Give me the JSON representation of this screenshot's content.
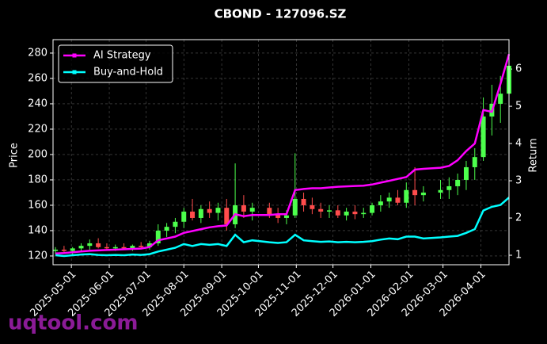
{
  "chart_data": {
    "type": "candlestick",
    "title": "CBOND - 127096.SZ",
    "ylabel": "Price",
    "y2label": "Return",
    "watermark": "uqtool.com",
    "legend": "upper left",
    "grid": true,
    "up_color": "#4cff4c",
    "down_color": "#ff4c4c",
    "x": [
      "2025-04-18",
      "2025-04-25",
      "2025-05-02",
      "2025-05-09",
      "2025-05-16",
      "2025-05-23",
      "2025-05-30",
      "2025-06-06",
      "2025-06-13",
      "2025-06-20",
      "2025-06-27",
      "2025-07-04",
      "2025-07-11",
      "2025-07-18",
      "2025-07-25",
      "2025-08-01",
      "2025-08-08",
      "2025-08-15",
      "2025-08-22",
      "2025-08-29",
      "2025-09-05",
      "2025-09-12",
      "2025-09-19",
      "2025-09-26",
      "2025-10-10",
      "2025-10-17",
      "2025-10-24",
      "2025-10-31",
      "2025-11-07",
      "2025-11-14",
      "2025-11-21",
      "2025-11-28",
      "2025-12-05",
      "2025-12-12",
      "2025-12-19",
      "2025-12-26",
      "2026-01-02",
      "2026-01-09",
      "2026-01-16",
      "2026-01-23",
      "2026-01-30",
      "2026-02-06",
      "2026-02-13",
      "2026-02-27",
      "2026-03-06",
      "2026-03-13",
      "2026-03-20",
      "2026-03-27",
      "2026-04-03",
      "2026-04-10",
      "2026-04-17",
      "2026-04-24"
    ],
    "open": [
      124,
      125,
      124,
      126,
      128,
      130,
      127,
      126,
      127,
      126,
      128,
      127,
      130,
      140,
      143,
      147,
      155,
      150,
      157,
      154,
      158,
      145,
      160,
      155,
      158,
      153,
      150,
      152,
      165,
      160,
      157,
      155,
      156,
      152,
      155,
      153,
      154,
      160,
      163,
      166,
      162,
      172,
      168,
      170,
      172,
      175,
      180,
      190,
      198,
      230,
      240,
      248
    ],
    "high": [
      127,
      128,
      127,
      130,
      133,
      134,
      130,
      129,
      130,
      129,
      131,
      132,
      145,
      146,
      150,
      158,
      165,
      160,
      163,
      162,
      165,
      193,
      168,
      162,
      162,
      158,
      156,
      201,
      170,
      166,
      162,
      160,
      160,
      158,
      160,
      158,
      162,
      168,
      170,
      172,
      178,
      190,
      175,
      180,
      182,
      185,
      195,
      205,
      245,
      255,
      262,
      282
    ],
    "low": [
      121,
      122,
      121,
      124,
      125,
      126,
      124,
      124,
      125,
      124,
      126,
      125,
      128,
      135,
      138,
      142,
      148,
      146,
      150,
      148,
      140,
      142,
      150,
      148,
      150,
      146,
      145,
      150,
      155,
      153,
      150,
      150,
      150,
      148,
      149,
      150,
      152,
      155,
      158,
      160,
      158,
      160,
      163,
      165,
      165,
      168,
      172,
      180,
      195,
      215,
      225,
      240
    ],
    "close": [
      125,
      124,
      126,
      128,
      130,
      127,
      126,
      127,
      126,
      128,
      127,
      130,
      140,
      143,
      147,
      155,
      150,
      157,
      154,
      158,
      145,
      160,
      155,
      158,
      153,
      150,
      152,
      165,
      160,
      157,
      155,
      156,
      152,
      155,
      153,
      154,
      160,
      163,
      166,
      162,
      172,
      168,
      170,
      172,
      175,
      180,
      190,
      198,
      230,
      240,
      248,
      270
    ],
    "series": [
      {
        "name": "AI Strategy",
        "color": "#ff00ff",
        "axis": "y2",
        "values": [
          1.05,
          1.06,
          1.08,
          1.1,
          1.12,
          1.13,
          1.14,
          1.15,
          1.16,
          1.17,
          1.18,
          1.22,
          1.4,
          1.45,
          1.5,
          1.6,
          1.65,
          1.7,
          1.75,
          1.78,
          1.8,
          2.1,
          2.05,
          2.08,
          2.08,
          2.1,
          2.1,
          2.75,
          2.78,
          2.8,
          2.8,
          2.82,
          2.84,
          2.85,
          2.86,
          2.87,
          2.9,
          2.95,
          3.0,
          3.05,
          3.1,
          3.3,
          3.32,
          3.35,
          3.4,
          3.55,
          3.8,
          4.0,
          4.9,
          4.85,
          5.6,
          6.4
        ]
      },
      {
        "name": "Buy-and-Hold",
        "color": "#00ffff",
        "axis": "y2",
        "values": [
          1.0,
          0.98,
          1.0,
          1.02,
          1.03,
          1.01,
          1.0,
          1.01,
          1.0,
          1.02,
          1.01,
          1.03,
          1.1,
          1.15,
          1.2,
          1.3,
          1.25,
          1.3,
          1.28,
          1.3,
          1.25,
          1.55,
          1.35,
          1.4,
          1.35,
          1.33,
          1.35,
          1.55,
          1.4,
          1.38,
          1.36,
          1.37,
          1.35,
          1.36,
          1.35,
          1.36,
          1.38,
          1.42,
          1.45,
          1.43,
          1.5,
          1.5,
          1.45,
          1.48,
          1.5,
          1.52,
          1.6,
          1.7,
          2.2,
          2.3,
          2.35,
          2.55
        ]
      }
    ],
    "xlim": [
      "2025-04-16",
      "2026-04-24"
    ],
    "xticks": [
      "2025-05-01",
      "2025-06-01",
      "2025-07-01",
      "2025-08-01",
      "2025-09-01",
      "2025-10-01",
      "2025-11-01",
      "2025-12-01",
      "2026-01-01",
      "2026-02-01",
      "2026-03-01",
      "2026-04-01"
    ],
    "ylim": [
      113.1,
      290.6
    ],
    "yticks": [
      120,
      140,
      160,
      180,
      200,
      220,
      240,
      260,
      280
    ],
    "y2lim": [
      0.745,
      6.79
    ],
    "y2ticks": [
      1,
      2,
      3,
      4,
      5,
      6
    ]
  }
}
